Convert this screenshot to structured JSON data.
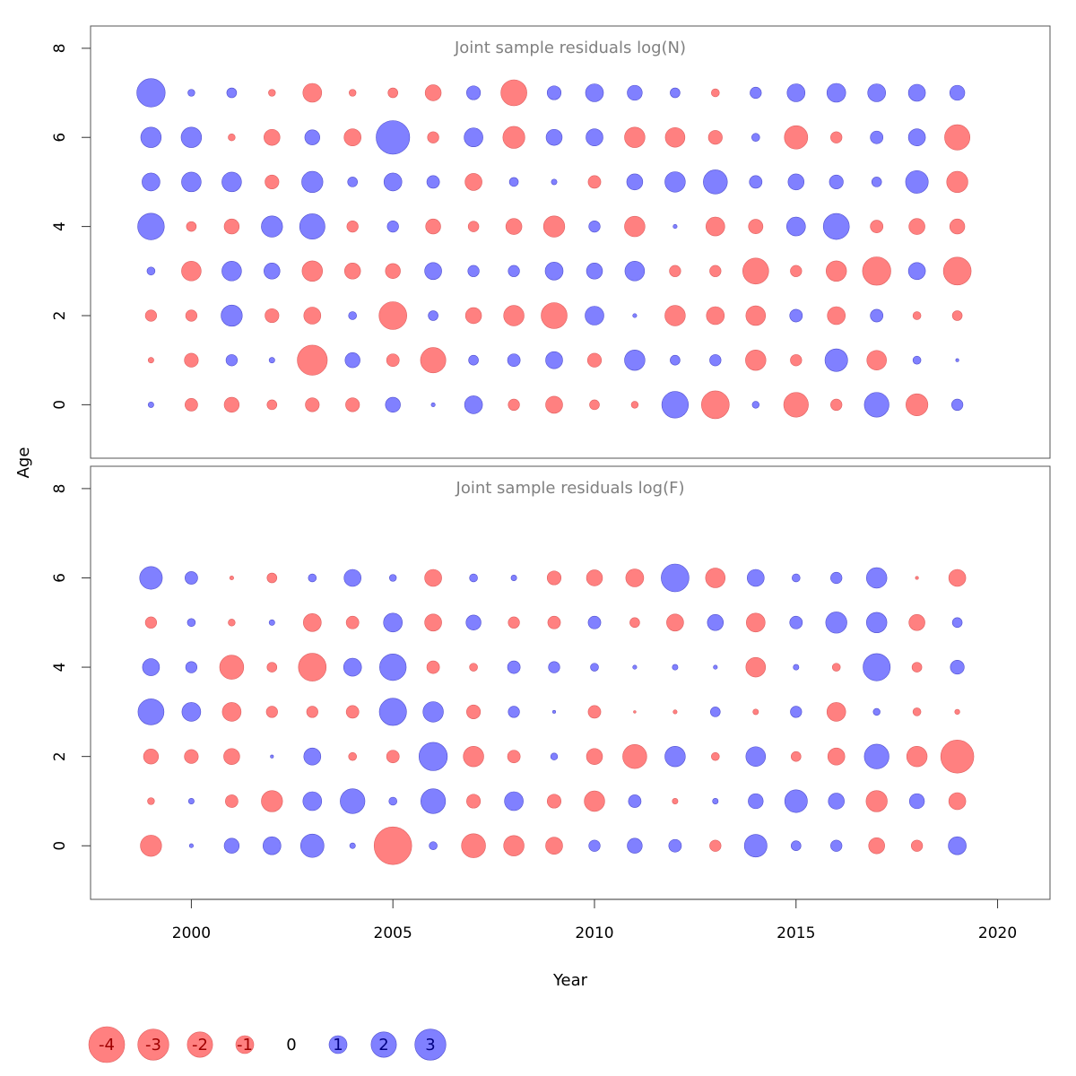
{
  "chart_data": {
    "type": "scatter",
    "subtype": "bubble",
    "xlabel": "Year",
    "ylabel": "Age",
    "xlim": [
      1997.5,
      2021.3
    ],
    "x_ticks": [
      "2000",
      "2005",
      "2010",
      "2015",
      "2020"
    ],
    "y_ticks": [
      "0",
      "2",
      "4",
      "6",
      "8"
    ],
    "colors": {
      "positive": "#8080ff",
      "negative": "#ff8080",
      "positive_edge": "#5050d0",
      "negative_edge": "#e06060"
    },
    "years": [
      1999,
      2000,
      2001,
      2002,
      2003,
      2004,
      2005,
      2006,
      2007,
      2008,
      2009,
      2010,
      2011,
      2012,
      2013,
      2014,
      2015,
      2016,
      2017,
      2018,
      2019
    ],
    "panels": [
      {
        "title": "Joint sample residuals log(N)",
        "ylim": [
          -1.2,
          8.5
        ],
        "ages": [
          0,
          1,
          2,
          3,
          4,
          5,
          6,
          7
        ],
        "residuals": [
          [
            0.1,
            -0.5,
            -0.7,
            -0.3,
            -0.6,
            -0.6,
            0.7,
            0.05,
            1.0,
            -0.4,
            -0.9,
            -0.3,
            -0.15,
            2.2,
            -2.4,
            0.15,
            -1.9,
            -0.4,
            1.9,
            -1.5,
            0.4
          ],
          [
            -0.1,
            -0.6,
            0.4,
            0.1,
            -2.8,
            0.7,
            -0.5,
            -2.0,
            0.3,
            0.5,
            0.9,
            -0.6,
            1.3,
            0.3,
            0.4,
            -1.3,
            -0.4,
            1.6,
            -1.2,
            0.2,
            0.03
          ],
          [
            -0.4,
            -0.4,
            1.4,
            -0.6,
            -0.9,
            0.2,
            -2.4,
            0.3,
            -0.8,
            -1.3,
            -2.1,
            1.1,
            0.05,
            -1.3,
            -1.0,
            -1.2,
            0.5,
            -1.0,
            0.5,
            -0.2,
            -0.3
          ],
          [
            0.2,
            -1.2,
            1.2,
            0.8,
            -1.3,
            -0.8,
            -0.7,
            0.9,
            0.4,
            0.4,
            1.0,
            0.8,
            1.2,
            -0.4,
            -0.4,
            -2.1,
            -0.4,
            -1.3,
            -2.5,
            0.9,
            -2.4
          ],
          [
            2.2,
            -0.3,
            -0.7,
            1.4,
            2.0,
            -0.4,
            0.4,
            -0.7,
            -0.35,
            -0.8,
            -1.4,
            0.4,
            -1.3,
            0.05,
            -1.1,
            -0.65,
            1.1,
            2.1,
            -0.5,
            -0.8,
            -0.7
          ],
          [
            1.0,
            1.2,
            1.2,
            -0.6,
            1.4,
            0.3,
            1.0,
            0.5,
            -0.9,
            0.25,
            0.1,
            -0.5,
            0.8,
            1.3,
            1.8,
            0.5,
            0.8,
            0.6,
            0.3,
            1.6,
            -1.4
          ],
          [
            1.3,
            1.3,
            -0.15,
            -0.8,
            0.7,
            -0.9,
            3.5,
            -0.4,
            1.1,
            -1.5,
            0.8,
            0.9,
            -1.3,
            -1.2,
            -0.6,
            0.2,
            -1.7,
            -0.4,
            0.5,
            0.9,
            -2.0
          ],
          [
            2.5,
            0.15,
            0.3,
            -0.15,
            -1.1,
            -0.15,
            -0.3,
            -0.8,
            0.6,
            -2.1,
            0.6,
            1.0,
            0.7,
            0.3,
            -0.2,
            0.4,
            1.0,
            1.1,
            1.0,
            0.9,
            0.7
          ]
        ]
      },
      {
        "title": "Joint sample residuals log(F)",
        "ylim": [
          -1.2,
          8.5
        ],
        "ages": [
          0,
          1,
          2,
          3,
          4,
          5,
          6
        ],
        "residuals": [
          [
            -1.4,
            0.05,
            0.7,
            1.0,
            1.7,
            0.1,
            -4.4,
            0.2,
            -1.8,
            -1.3,
            -0.9,
            0.4,
            0.7,
            0.5,
            -0.4,
            1.6,
            0.3,
            0.4,
            -0.8,
            -0.4,
            1.0
          ],
          [
            -0.15,
            0.1,
            -0.5,
            -1.4,
            1.1,
            1.9,
            0.2,
            1.9,
            -0.6,
            1.1,
            -0.6,
            -1.3,
            0.5,
            -0.1,
            0.1,
            0.7,
            1.6,
            0.8,
            -1.4,
            0.7,
            -0.9
          ],
          [
            -0.7,
            -0.6,
            -0.8,
            0.03,
            0.9,
            -0.2,
            -0.5,
            2.5,
            -1.3,
            -0.5,
            0.15,
            -0.8,
            -1.8,
            1.3,
            -0.2,
            1.2,
            -0.3,
            -0.9,
            1.9,
            -1.3,
            -3.4
          ],
          [
            2.1,
            1.1,
            -1.1,
            -0.4,
            -0.4,
            -0.5,
            2.3,
            1.3,
            -0.6,
            0.4,
            0.03,
            -0.5,
            -0.02,
            -0.05,
            0.3,
            -0.1,
            0.4,
            -1.1,
            0.15,
            -0.2,
            -0.08
          ],
          [
            0.9,
            0.4,
            -1.8,
            -0.3,
            -2.4,
            1.0,
            2.2,
            -0.5,
            -0.2,
            0.5,
            0.4,
            0.2,
            0.05,
            0.1,
            0.05,
            -1.2,
            0.1,
            -0.2,
            2.3,
            -0.3,
            0.6
          ],
          [
            -0.4,
            0.2,
            -0.15,
            0.1,
            -1.0,
            -0.5,
            1.1,
            -0.9,
            0.7,
            -0.4,
            -0.5,
            0.5,
            -0.3,
            -0.9,
            0.8,
            -1.1,
            0.5,
            1.4,
            1.3,
            -0.8,
            0.3
          ],
          [
            1.6,
            0.5,
            -0.05,
            -0.3,
            0.2,
            0.9,
            0.15,
            -0.9,
            0.2,
            0.1,
            -0.6,
            -0.8,
            -1.0,
            2.4,
            -1.2,
            0.9,
            0.2,
            0.4,
            1.3,
            -0.03,
            -0.9
          ]
        ]
      }
    ],
    "legend": {
      "position": "bottom-left",
      "values": [
        -4,
        -3,
        -2,
        -1,
        0,
        1,
        2,
        3
      ],
      "labels": [
        "-4",
        "-3",
        "-2",
        "-1",
        "0",
        "1",
        "2",
        "3"
      ]
    }
  }
}
